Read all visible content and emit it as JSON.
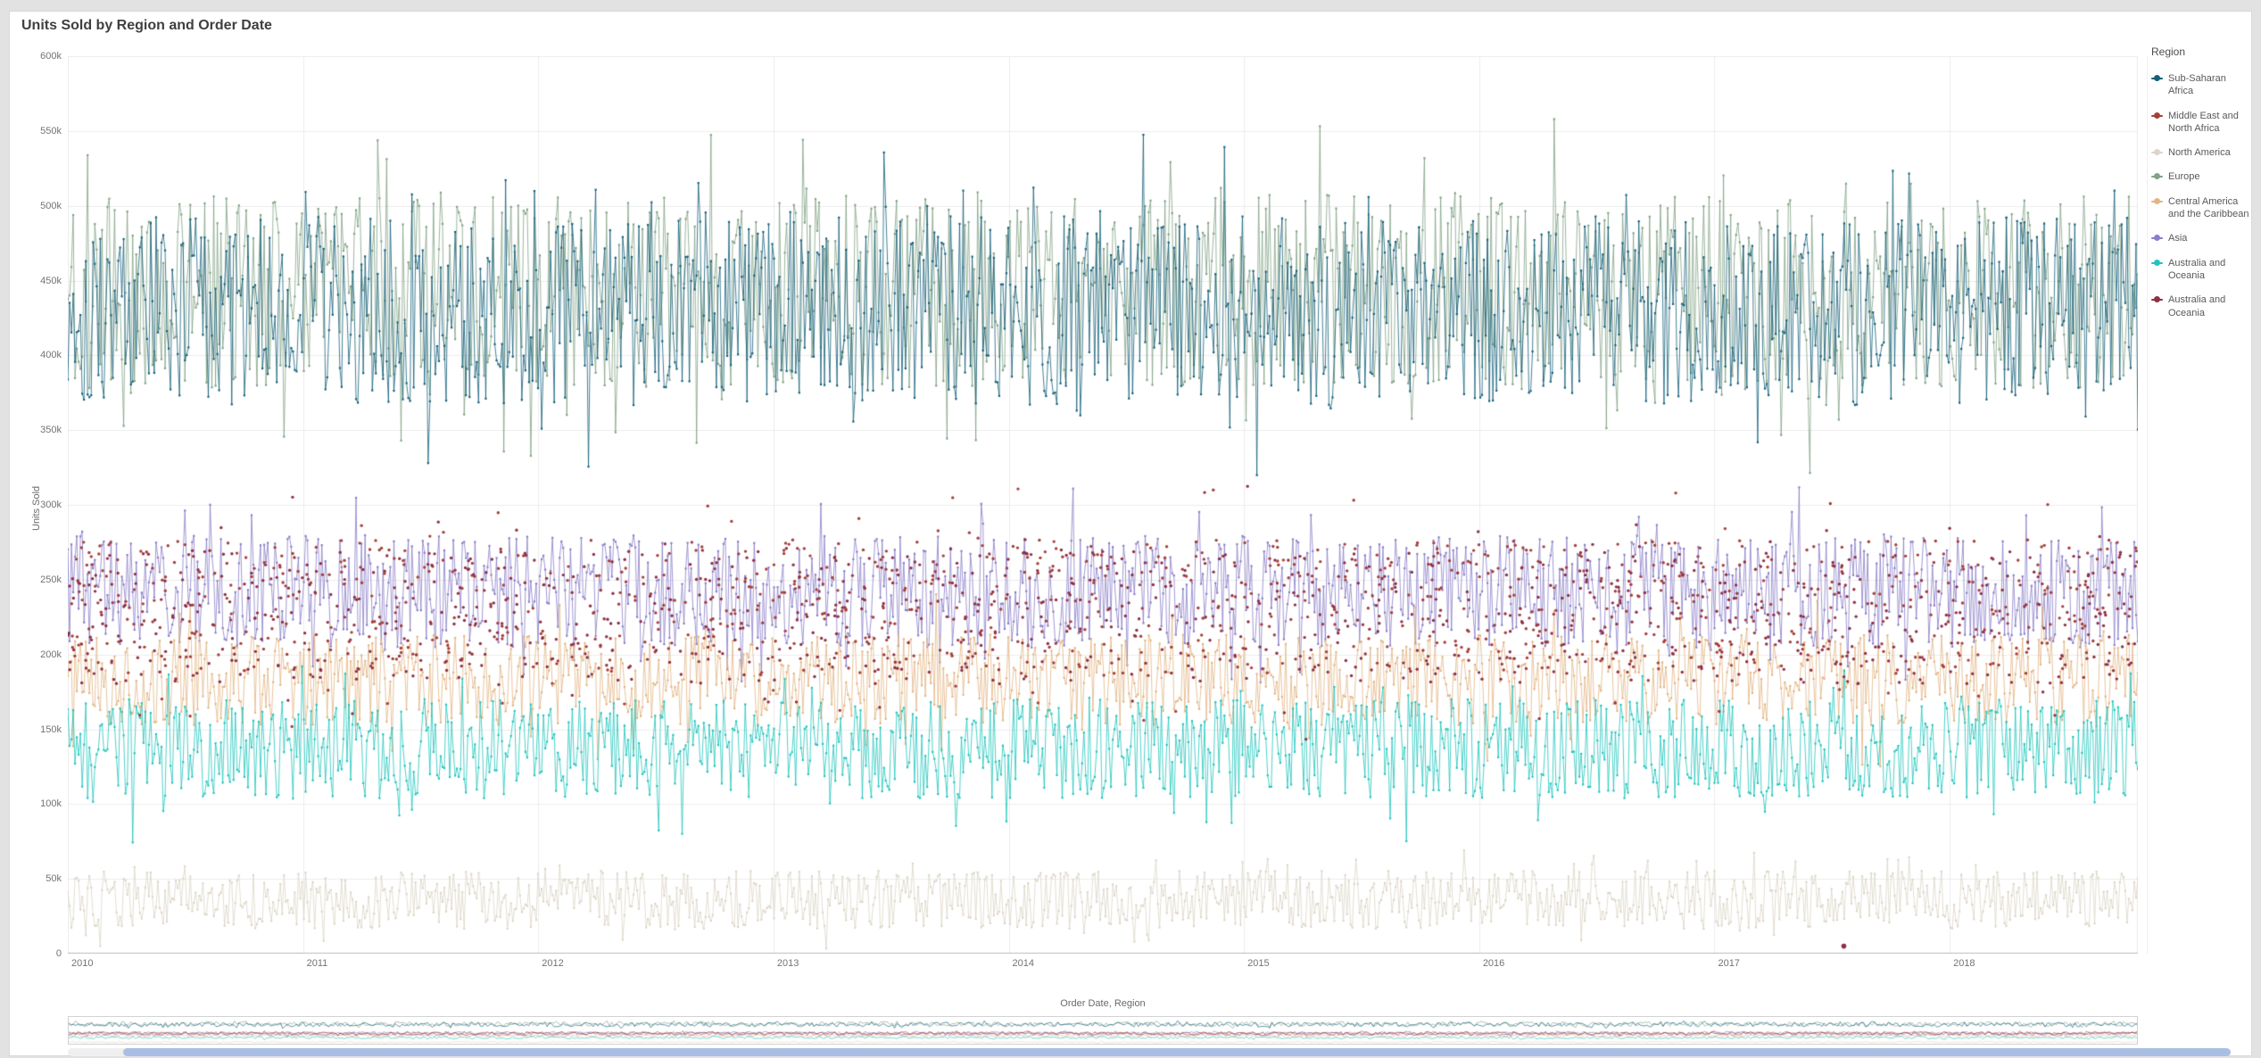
{
  "header": {
    "title": "Units Sold by Region and Order Date"
  },
  "chart_data": {
    "type": "line",
    "title": "Units Sold by Region and Order Date",
    "xlabel": "Order Date, Region",
    "ylabel": "Units Sold",
    "legend_title": "Region",
    "legend_position": "right",
    "grid": true,
    "x_range": [
      2010,
      2018.8
    ],
    "x_ticks": [
      2010,
      2011,
      2012,
      2013,
      2014,
      2015,
      2016,
      2017,
      2018
    ],
    "ylim": [
      0,
      600000
    ],
    "y_ticks": [
      {
        "value": 0,
        "label": "0"
      },
      {
        "value": 50000,
        "label": "50k"
      },
      {
        "value": 100000,
        "label": "100k"
      },
      {
        "value": 150000,
        "label": "150k"
      },
      {
        "value": 200000,
        "label": "200k"
      },
      {
        "value": 250000,
        "label": "250k"
      },
      {
        "value": 300000,
        "label": "300k"
      },
      {
        "value": 350000,
        "label": "350k"
      },
      {
        "value": 400000,
        "label": "400k"
      },
      {
        "value": 450000,
        "label": "450k"
      },
      {
        "value": 500000,
        "label": "500k"
      },
      {
        "value": 550000,
        "label": "550k"
      },
      {
        "value": 600000,
        "label": "600k"
      }
    ],
    "series": [
      {
        "name": "Sub-Saharan Africa",
        "color": "#15607a",
        "style": "line+markers",
        "mean": 430000,
        "spread": 88000
      },
      {
        "name": "Middle East and North Africa",
        "color": "#a43f39",
        "style": "markers",
        "mean": 232000,
        "spread": 62000
      },
      {
        "name": "North America",
        "color": "#dcd6c7",
        "style": "line+markers",
        "mean": 36000,
        "spread": 27000
      },
      {
        "name": "Europe",
        "color": "#82a286",
        "style": "line+markers",
        "mean": 442000,
        "spread": 90000
      },
      {
        "name": "Central America and the Caribbean",
        "color": "#e2b584",
        "style": "line+markers",
        "mean": 183000,
        "spread": 42000
      },
      {
        "name": "Asia",
        "color": "#8a7ec8",
        "style": "line+markers",
        "mean": 242000,
        "spread": 52000
      },
      {
        "name": "Australia and Oceania",
        "color": "#21c5bd",
        "style": "line+markers",
        "mean": 137000,
        "spread": 46000
      },
      {
        "name": "Australia and Oceania",
        "color": "#8e2f45",
        "style": "markers",
        "mean": 225000,
        "spread": 62000
      }
    ],
    "outlier_point": {
      "x": 2017.55,
      "y": 5000,
      "series": "Australia and Oceania"
    },
    "navigator_visible": true,
    "scrollbar_color": "#a9bee3"
  }
}
